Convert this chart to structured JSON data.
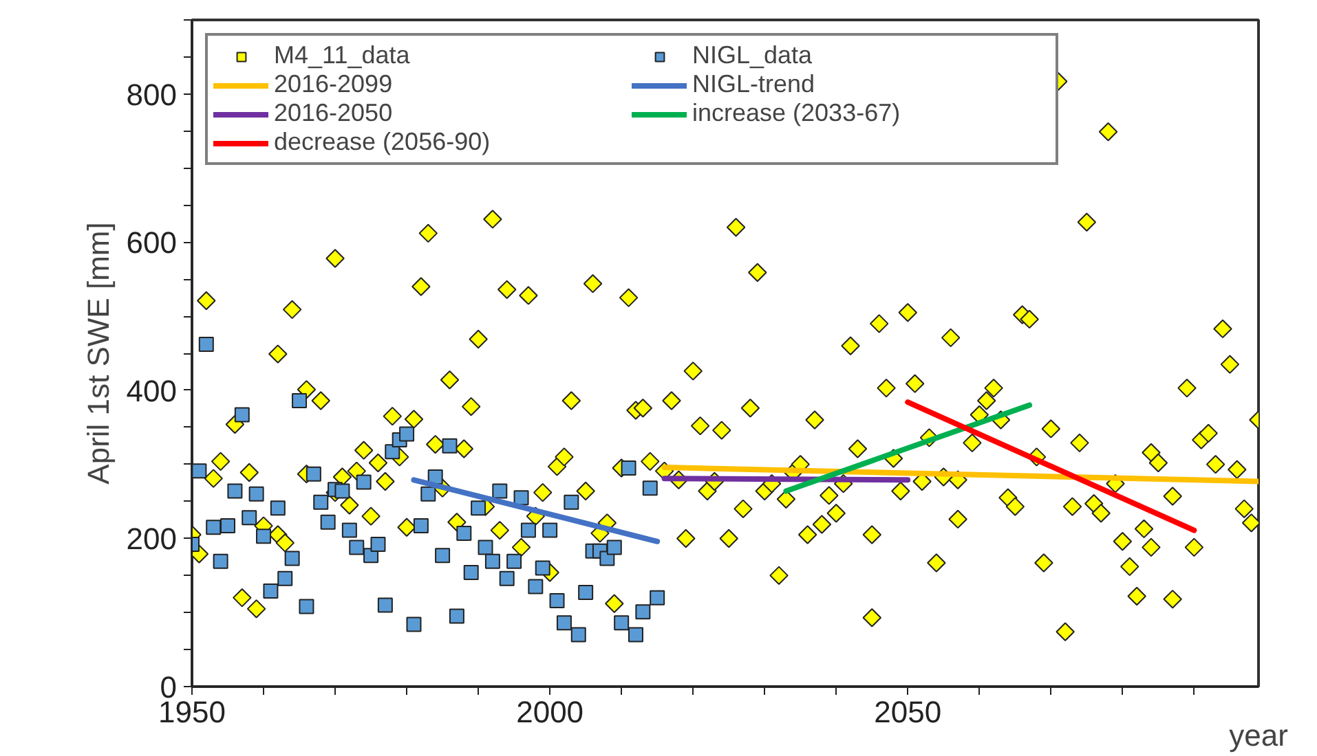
{
  "chart_data": {
    "type": "scatter",
    "xlabel": "year",
    "ylabel": "April 1st SWE [mm]",
    "xlim": [
      1950,
      2099
    ],
    "ylim": [
      0,
      900
    ],
    "xticks": [
      1950,
      {
        "value": 1960,
        "label": null
      },
      {
        "value": 1970,
        "label": null
      },
      {
        "value": 1980,
        "label": null
      },
      {
        "value": 1990,
        "label": null
      },
      2000,
      {
        "value": 2010,
        "label": null
      },
      {
        "value": 2020,
        "label": null
      },
      {
        "value": 2030,
        "label": null
      },
      {
        "value": 2040,
        "label": null
      },
      2050,
      {
        "value": 2060,
        "label": null
      },
      {
        "value": 2070,
        "label": null
      },
      {
        "value": 2080,
        "label": null
      },
      {
        "value": 2090,
        "label": null
      }
    ],
    "yticks": [
      0,
      {
        "value": 50,
        "label": null
      },
      {
        "value": 100,
        "label": null
      },
      {
        "value": 150,
        "label": null
      },
      200,
      {
        "value": 250,
        "label": null
      },
      {
        "value": 300,
        "label": null
      },
      {
        "value": 350,
        "label": null
      },
      400,
      {
        "value": 450,
        "label": null
      },
      {
        "value": 500,
        "label": null
      },
      {
        "value": 550,
        "label": null
      },
      600,
      {
        "value": 650,
        "label": null
      },
      {
        "value": 700,
        "label": null
      },
      {
        "value": 750,
        "label": null
      },
      800,
      {
        "value": 850,
        "label": null
      },
      {
        "value": 900,
        "label": null
      }
    ],
    "grid": false,
    "legend": "top left",
    "series": [
      {
        "name": "M4_11_data",
        "marker": "diamond",
        "color": "#ffff00",
        "x": [
          1950,
          1951,
          1952,
          1953,
          1954,
          1956,
          1957,
          1958,
          1959,
          1960,
          1962,
          1962,
          1963,
          1964,
          1966,
          1966,
          1968,
          1970,
          1970,
          1971,
          1972,
          1973,
          1974,
          1975,
          1976,
          1977,
          1978,
          1979,
          1980,
          1981,
          1982,
          1983,
          1984,
          1985,
          1986,
          1987,
          1988,
          1989,
          1990,
          1991,
          1992,
          1993,
          1994,
          1996,
          1997,
          1998,
          1999,
          2000,
          2001,
          2002,
          2003,
          2005,
          2006,
          2007,
          2008,
          2009,
          2010,
          2011,
          2012,
          2013,
          2014,
          2016,
          2017,
          2018,
          2019,
          2020,
          2021,
          2022,
          2023,
          2024,
          2025,
          2026,
          2027,
          2028,
          2029,
          2030,
          2031,
          2032,
          2033,
          2034,
          2035,
          2036,
          2037,
          2038,
          2039,
          2040,
          2041,
          2042,
          2043,
          2045,
          2045,
          2046,
          2047,
          2048,
          2049,
          2050,
          2051,
          2052,
          2053,
          2054,
          2055,
          2056,
          2057,
          2057,
          2059,
          2060,
          2061,
          2062,
          2063,
          2064,
          2065,
          2066,
          2067,
          2068,
          2069,
          2070,
          2071,
          2072,
          2073,
          2074,
          2075,
          2076,
          2077,
          2078,
          2079,
          2080,
          2081,
          2082,
          2083,
          2084,
          2084,
          2085,
          2087,
          2087,
          2089,
          2090,
          2091,
          2092,
          2093,
          2094,
          2095,
          2096,
          2097,
          2098,
          2099
        ],
        "values": [
          205,
          179,
          521,
          281,
          304,
          354,
          120,
          289,
          105,
          217,
          449,
          205,
          194,
          509,
          401,
          287,
          386,
          578,
          262,
          283,
          245,
          291,
          319,
          230,
          302,
          277,
          365,
          310,
          215,
          361,
          540,
          612,
          327,
          268,
          414,
          222,
          321,
          378,
          469,
          243,
          631,
          211,
          536,
          188,
          528,
          230,
          262,
          154,
          297,
          310,
          386,
          264,
          544,
          207,
          221,
          112,
          295,
          525,
          373,
          376,
          304,
          291,
          386,
          279,
          200,
          426,
          352,
          264,
          277,
          346,
          200,
          620,
          240,
          376,
          559,
          264,
          274,
          150,
          253,
          289,
          300,
          205,
          360,
          219,
          258,
          234,
          274,
          460,
          321,
          205,
          93,
          490,
          403,
          308,
          264,
          505,
          409,
          277,
          336,
          167,
          283,
          471,
          279,
          226,
          329,
          367,
          386,
          403,
          360,
          255,
          243,
          502,
          496,
          310,
          167,
          348,
          817,
          74,
          243,
          329,
          627,
          247,
          234,
          749,
          274,
          196,
          162,
          122,
          213,
          316,
          188,
          302,
          257,
          118,
          403,
          188,
          333,
          342,
          300,
          483,
          435,
          293,
          240,
          221,
          360
        ]
      },
      {
        "name": "NIGL_data",
        "marker": "square",
        "color": "#5b9bd5",
        "x": [
          1950,
          1951,
          1952,
          1953,
          1954,
          1955,
          1956,
          1957,
          1958,
          1959,
          1960,
          1961,
          1962,
          1963,
          1964,
          1965,
          1966,
          1967,
          1968,
          1969,
          1970,
          1971,
          1972,
          1973,
          1974,
          1975,
          1976,
          1977,
          1978,
          1979,
          1980,
          1981,
          1982,
          1983,
          1984,
          1985,
          1986,
          1987,
          1988,
          1989,
          1990,
          1991,
          1992,
          1993,
          1994,
          1995,
          1996,
          1997,
          1998,
          1999,
          2000,
          2001,
          2002,
          2003,
          2004,
          2005,
          2006,
          2007,
          2008,
          2009,
          2010,
          2011,
          2012,
          2013,
          2014,
          2015
        ],
        "values": [
          192,
          291,
          462,
          215,
          169,
          217,
          264,
          367,
          228,
          260,
          203,
          129,
          241,
          146,
          173,
          386,
          108,
          287,
          249,
          222,
          266,
          264,
          211,
          188,
          276,
          177,
          192,
          110,
          317,
          333,
          341,
          84,
          217,
          260,
          283,
          177,
          325,
          95,
          207,
          154,
          241,
          188,
          169,
          264,
          146,
          169,
          255,
          211,
          135,
          160,
          211,
          116,
          86,
          249,
          70,
          127,
          183,
          183,
          173,
          188,
          86,
          295,
          70,
          101,
          268,
          120
        ]
      },
      {
        "name": "2016-2099",
        "type": "line",
        "color": "#ffc000",
        "x": [
          2016,
          2099
        ],
        "values": [
          296,
          277
        ]
      },
      {
        "name": "NIGL-trend",
        "type": "line",
        "color": "#4472c4",
        "x": [
          1981,
          2015
        ],
        "values": [
          279,
          196
        ]
      },
      {
        "name": "2016-2050",
        "type": "line",
        "color": "#7030a0",
        "x": [
          2016,
          2050
        ],
        "values": [
          281,
          279
        ]
      },
      {
        "name": "increase (2033-67)",
        "type": "line",
        "color": "#00b050",
        "x": [
          2033,
          2067
        ],
        "values": [
          264,
          380
        ]
      },
      {
        "name": "decrease (2056-90)",
        "type": "line",
        "color": "#ff0000",
        "x": [
          2050,
          2090
        ],
        "values": [
          384,
          211
        ]
      }
    ]
  }
}
